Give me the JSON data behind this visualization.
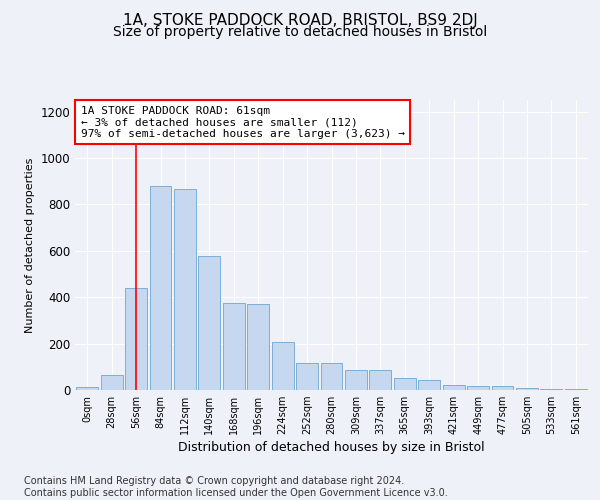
{
  "title_line1": "1A, STOKE PADDOCK ROAD, BRISTOL, BS9 2DJ",
  "title_line2": "Size of property relative to detached houses in Bristol",
  "xlabel": "Distribution of detached houses by size in Bristol",
  "ylabel": "Number of detached properties",
  "bar_labels": [
    "0sqm",
    "28sqm",
    "56sqm",
    "84sqm",
    "112sqm",
    "140sqm",
    "168sqm",
    "196sqm",
    "224sqm",
    "252sqm",
    "280sqm",
    "309sqm",
    "337sqm",
    "365sqm",
    "393sqm",
    "421sqm",
    "449sqm",
    "477sqm",
    "505sqm",
    "533sqm",
    "561sqm"
  ],
  "bar_values": [
    12,
    65,
    440,
    880,
    865,
    578,
    375,
    370,
    205,
    115,
    115,
    85,
    85,
    50,
    42,
    22,
    18,
    18,
    10,
    5,
    5
  ],
  "bar_color": "#c5d8f0",
  "bar_edge_color": "#7bafd4",
  "annotation_box_text": "1A STOKE PADDOCK ROAD: 61sqm\n← 3% of detached houses are smaller (112)\n97% of semi-detached houses are larger (3,623) →",
  "vline_x": 2.0,
  "ylim": [
    0,
    1250
  ],
  "yticks": [
    0,
    200,
    400,
    600,
    800,
    1000,
    1200
  ],
  "background_color": "#eef2f8",
  "plot_bg_color": "#eef2f8",
  "footer_line1": "Contains HM Land Registry data © Crown copyright and database right 2024.",
  "footer_line2": "Contains public sector information licensed under the Open Government Licence v3.0.",
  "title_fontsize": 11,
  "subtitle_fontsize": 10,
  "annotation_fontsize": 8,
  "footer_fontsize": 7,
  "ylabel_fontsize": 8,
  "xlabel_fontsize": 9
}
